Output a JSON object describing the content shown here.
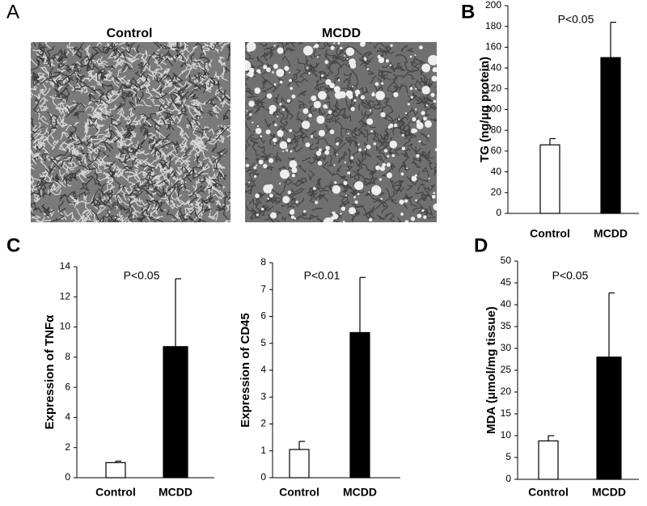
{
  "panel_labels": [
    "A",
    "B",
    "C",
    "D"
  ],
  "images": [
    {
      "label": "Control"
    },
    {
      "label": "MCDD"
    }
  ],
  "chart_data": [
    {
      "type": "bar",
      "y_label": "TG (ng/μg protein)",
      "annotation": "P<0.05",
      "categories": [
        "Control",
        "MCDD"
      ],
      "values": [
        66,
        150
      ],
      "errors": [
        6,
        34
      ],
      "colors": [
        "#ffffff",
        "#000000"
      ],
      "ylim": [
        0,
        200
      ],
      "yticks": [
        0,
        20,
        40,
        60,
        80,
        100,
        120,
        140,
        160,
        180,
        200
      ]
    },
    {
      "type": "bar",
      "y_label": "Expression of TNFα",
      "annotation": "P<0.05",
      "categories": [
        "Control",
        "MCDD"
      ],
      "values": [
        1.0,
        8.7
      ],
      "errors": [
        0.1,
        4.5
      ],
      "colors": [
        "#ffffff",
        "#000000"
      ],
      "ylim": [
        0,
        14
      ],
      "yticks": [
        0,
        2,
        4,
        6,
        8,
        10,
        12,
        14
      ]
    },
    {
      "type": "bar",
      "y_label": "Expression of CD45",
      "annotation": "P<0.01",
      "categories": [
        "Control",
        "MCDD"
      ],
      "values": [
        1.05,
        5.4
      ],
      "errors": [
        0.3,
        2.05
      ],
      "colors": [
        "#ffffff",
        "#000000"
      ],
      "ylim": [
        0,
        8
      ],
      "yticks": [
        0,
        1,
        2,
        3,
        4,
        5,
        6,
        7,
        8
      ]
    },
    {
      "type": "bar",
      "y_label": "MDA (μmol/mg tissue)",
      "annotation": "P<0.05",
      "categories": [
        "Control",
        "MCDD"
      ],
      "values": [
        8.8,
        28
      ],
      "errors": [
        1.2,
        14.7
      ],
      "colors": [
        "#ffffff",
        "#000000"
      ],
      "ylim": [
        0,
        50
      ],
      "yticks": [
        0,
        5,
        10,
        15,
        20,
        25,
        30,
        35,
        40,
        45,
        50
      ]
    }
  ]
}
